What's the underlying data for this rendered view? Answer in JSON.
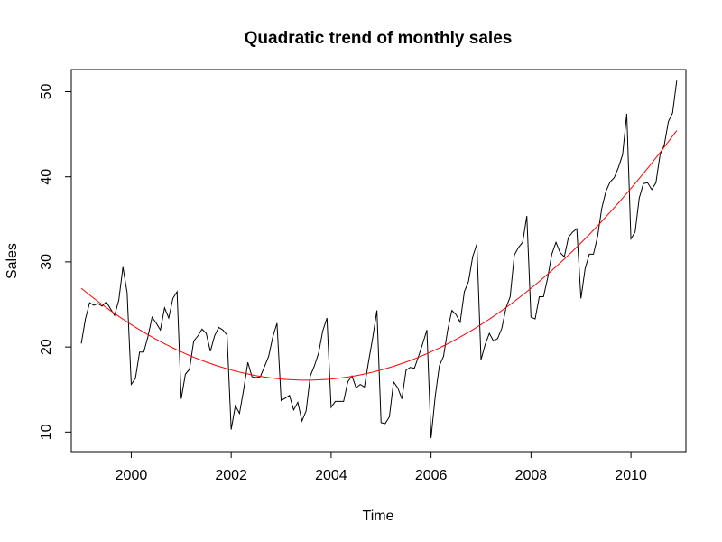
{
  "chart_data": {
    "type": "line",
    "title": "Quadratic trend of monthly sales",
    "xlabel": "Time",
    "ylabel": "Sales",
    "xlim": [
      1998.8,
      2011.1
    ],
    "ylim": [
      7.7,
      52.6
    ],
    "x_ticks": [
      2000,
      2002,
      2004,
      2006,
      2008,
      2010
    ],
    "x_tick_labels": [
      "2000",
      "2002",
      "2004",
      "2006",
      "2008",
      "2010"
    ],
    "y_ticks": [
      10,
      20,
      30,
      40,
      50
    ],
    "y_tick_labels": [
      "10",
      "20",
      "30",
      "40",
      "50"
    ],
    "grid": false,
    "series": [
      {
        "name": "Sales",
        "color": "#000000",
        "start": 1999.0,
        "step": 0.08333,
        "values": [
          20.4,
          23.3,
          25.2,
          24.9,
          25.1,
          24.8,
          25.3,
          24.5,
          23.7,
          25.5,
          29.4,
          26.4,
          15.6,
          16.3,
          19.4,
          19.4,
          21.2,
          23.5,
          22.8,
          22.0,
          24.6,
          23.4,
          25.7,
          26.5,
          13.9,
          16.8,
          17.4,
          20.7,
          21.3,
          22.1,
          21.6,
          19.5,
          21.3,
          22.3,
          22.0,
          21.4,
          10.3,
          13.1,
          12.2,
          15.0,
          18.2,
          16.5,
          16.4,
          16.5,
          17.7,
          18.9,
          21.2,
          22.8,
          13.7,
          14.0,
          14.3,
          12.6,
          13.5,
          11.3,
          12.5,
          16.6,
          17.8,
          19.3,
          21.9,
          23.4,
          12.9,
          13.6,
          13.6,
          13.6,
          15.9,
          16.6,
          15.2,
          15.6,
          15.3,
          18.3,
          21.1,
          24.3,
          11.1,
          11.0,
          11.8,
          15.9,
          15.2,
          13.9,
          17.3,
          17.6,
          17.5,
          18.9,
          20.4,
          22.0,
          9.3,
          14.2,
          17.8,
          18.9,
          22.0,
          24.3,
          23.8,
          22.9,
          26.5,
          27.7,
          30.6,
          32.1,
          18.5,
          20.3,
          21.6,
          20.7,
          21.0,
          22.2,
          24.6,
          25.9,
          30.8,
          31.7,
          32.3,
          35.4,
          23.5,
          23.3,
          25.9,
          25.9,
          28.1,
          30.9,
          32.3,
          31.1,
          30.6,
          32.9,
          33.5,
          33.9,
          25.7,
          29.2,
          30.9,
          30.9,
          33.0,
          36.3,
          38.3,
          39.4,
          39.9,
          41.1,
          42.6,
          47.4,
          32.7,
          33.5,
          37.5,
          39.2,
          39.3,
          38.5,
          39.3,
          42.6,
          43.7,
          46.5,
          47.5,
          51.3
        ]
      },
      {
        "name": "Quadratic trend",
        "color": "#ff0000",
        "start": 1999.0,
        "step": 0.08333,
        "vertex_x": 2003.5,
        "vertex_y": 16.1,
        "value_at_start": 26.9,
        "end_x": 2010.9167,
        "value_at_end": 46.1
      }
    ]
  }
}
